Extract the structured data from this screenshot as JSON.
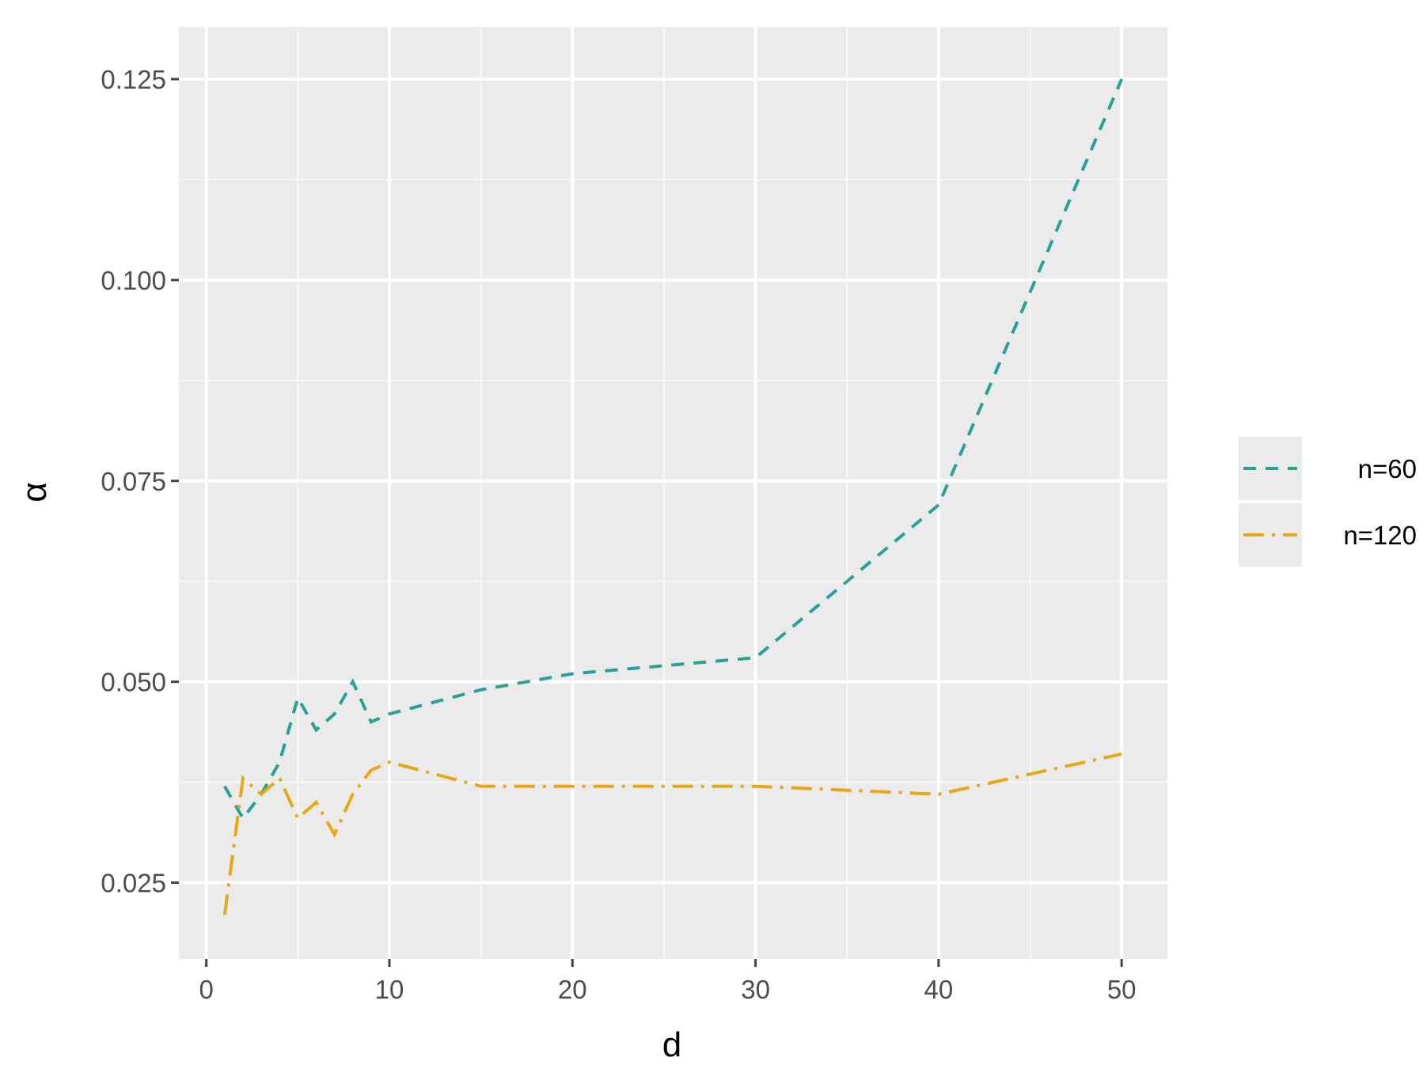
{
  "chart_data": {
    "type": "line",
    "xlabel": "d",
    "ylabel": "α",
    "xlim": [
      -1.5,
      52.5
    ],
    "ylim": [
      0.0155,
      0.1315
    ],
    "x_ticks": [
      0,
      10,
      20,
      30,
      40,
      50
    ],
    "x_tick_labels": [
      "0",
      "10",
      "20",
      "30",
      "40",
      "50"
    ],
    "y_ticks": [
      0.025,
      0.05,
      0.075,
      0.1,
      0.125
    ],
    "y_tick_labels": [
      "0.025",
      "0.050",
      "0.075",
      "0.100",
      "0.125"
    ],
    "grid": true,
    "legend_position": "right",
    "series": [
      {
        "name": "n=60",
        "color": "#2aa198",
        "dash": "dashed",
        "x": [
          1,
          2,
          3,
          4,
          5,
          6,
          7,
          8,
          9,
          10,
          15,
          20,
          30,
          40,
          50
        ],
        "y": [
          0.037,
          0.033,
          0.036,
          0.04,
          0.048,
          0.044,
          0.046,
          0.05,
          0.045,
          0.046,
          0.049,
          0.051,
          0.053,
          0.072,
          0.125
        ]
      },
      {
        "name": "n=120",
        "color": "#e6a817",
        "dash": "dotdash",
        "x": [
          1,
          2,
          3,
          4,
          5,
          6,
          7,
          8,
          9,
          10,
          15,
          20,
          30,
          40,
          50
        ],
        "y": [
          0.021,
          0.038,
          0.036,
          0.038,
          0.033,
          0.035,
          0.031,
          0.036,
          0.039,
          0.04,
          0.037,
          0.037,
          0.037,
          0.036,
          0.041
        ]
      }
    ]
  }
}
